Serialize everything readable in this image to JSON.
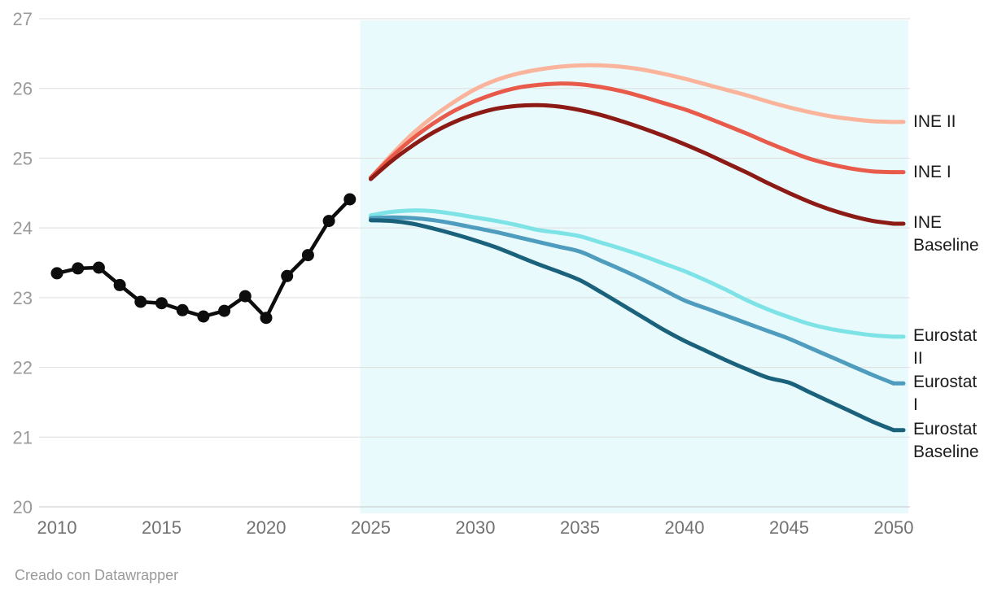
{
  "footer": {
    "credit": "Creado con Datawrapper"
  },
  "chart_data": {
    "type": "line",
    "title": "",
    "xlabel": "",
    "ylabel": "",
    "xlim": [
      2010,
      2050
    ],
    "ylim": [
      20,
      27
    ],
    "x_ticks": [
      2010,
      2015,
      2020,
      2025,
      2030,
      2035,
      2040,
      2045,
      2050
    ],
    "y_ticks": [
      20,
      21,
      22,
      23,
      24,
      25,
      26,
      27
    ],
    "grid": "horizontal",
    "legend_position": "right-edge-labels",
    "projection_region": {
      "from": 2024.5,
      "to": 2050.7,
      "color": "#E9FAFC"
    },
    "grid_color": "#DEDEDE",
    "baseline_color": "#C8C8C8",
    "series": [
      {
        "id": "historical",
        "label_lines": [],
        "color": "#0d0d0d",
        "style": "line+markers",
        "x_start": 2010,
        "values": [
          23.35,
          23.42,
          23.43,
          23.18,
          22.94,
          22.92,
          22.82,
          22.73,
          22.81,
          23.02,
          22.71,
          23.31,
          23.61,
          24.1,
          24.41
        ]
      },
      {
        "id": "ine-ii",
        "label_lines": [
          "INE II"
        ],
        "color": "#FBB49C",
        "style": "line",
        "x_start": 2025,
        "values": [
          24.72,
          25.05,
          25.35,
          25.6,
          25.81,
          25.99,
          26.12,
          26.21,
          26.27,
          26.31,
          26.33,
          26.33,
          26.31,
          26.27,
          26.21,
          26.14,
          26.06,
          25.98,
          25.9,
          25.81,
          25.73,
          25.66,
          25.6,
          25.56,
          25.53,
          25.52
        ]
      },
      {
        "id": "ine-i",
        "label_lines": [
          "INE I"
        ],
        "color": "#E85B4B",
        "style": "line",
        "x_start": 2025,
        "values": [
          24.72,
          25.02,
          25.28,
          25.5,
          25.68,
          25.82,
          25.93,
          26.01,
          26.05,
          26.07,
          26.06,
          26.02,
          25.96,
          25.88,
          25.79,
          25.7,
          25.59,
          25.47,
          25.35,
          25.22,
          25.1,
          24.99,
          24.91,
          24.85,
          24.81,
          24.8
        ]
      },
      {
        "id": "ine-baseline",
        "label_lines": [
          "INE",
          "Baseline"
        ],
        "color": "#8C1A15",
        "style": "line",
        "x_start": 2025,
        "values": [
          24.7,
          24.96,
          25.18,
          25.37,
          25.52,
          25.63,
          25.71,
          25.75,
          25.76,
          25.74,
          25.69,
          25.62,
          25.53,
          25.43,
          25.32,
          25.2,
          25.07,
          24.93,
          24.79,
          24.64,
          24.5,
          24.37,
          24.26,
          24.17,
          24.1,
          24.06
        ]
      },
      {
        "id": "eurostat-ii",
        "label_lines": [
          "Eurostat",
          "II"
        ],
        "color": "#7EE3E6",
        "style": "line",
        "x_start": 2025,
        "values": [
          24.18,
          24.23,
          24.25,
          24.24,
          24.2,
          24.15,
          24.1,
          24.04,
          23.97,
          23.93,
          23.88,
          23.79,
          23.7,
          23.6,
          23.49,
          23.38,
          23.25,
          23.11,
          22.96,
          22.83,
          22.72,
          22.62,
          22.55,
          22.5,
          22.46,
          22.44
        ]
      },
      {
        "id": "eurostat-i",
        "label_lines": [
          "Eurostat",
          "I"
        ],
        "color": "#4F9DBE",
        "style": "line",
        "x_start": 2025,
        "values": [
          24.14,
          24.15,
          24.14,
          24.11,
          24.06,
          24.0,
          23.94,
          23.87,
          23.8,
          23.73,
          23.66,
          23.53,
          23.4,
          23.26,
          23.11,
          22.96,
          22.85,
          22.74,
          22.63,
          22.52,
          22.41,
          22.28,
          22.15,
          22.02,
          21.89,
          21.77
        ]
      },
      {
        "id": "eurostat-baseline",
        "label_lines": [
          "Eurostat",
          "Baseline"
        ],
        "color": "#1A617B",
        "style": "line",
        "x_start": 2025,
        "values": [
          24.11,
          24.1,
          24.06,
          23.99,
          23.91,
          23.82,
          23.72,
          23.6,
          23.48,
          23.37,
          23.25,
          23.08,
          22.9,
          22.72,
          22.54,
          22.38,
          22.24,
          22.1,
          21.97,
          21.85,
          21.78,
          21.64,
          21.5,
          21.36,
          21.22,
          21.1
        ]
      }
    ]
  }
}
